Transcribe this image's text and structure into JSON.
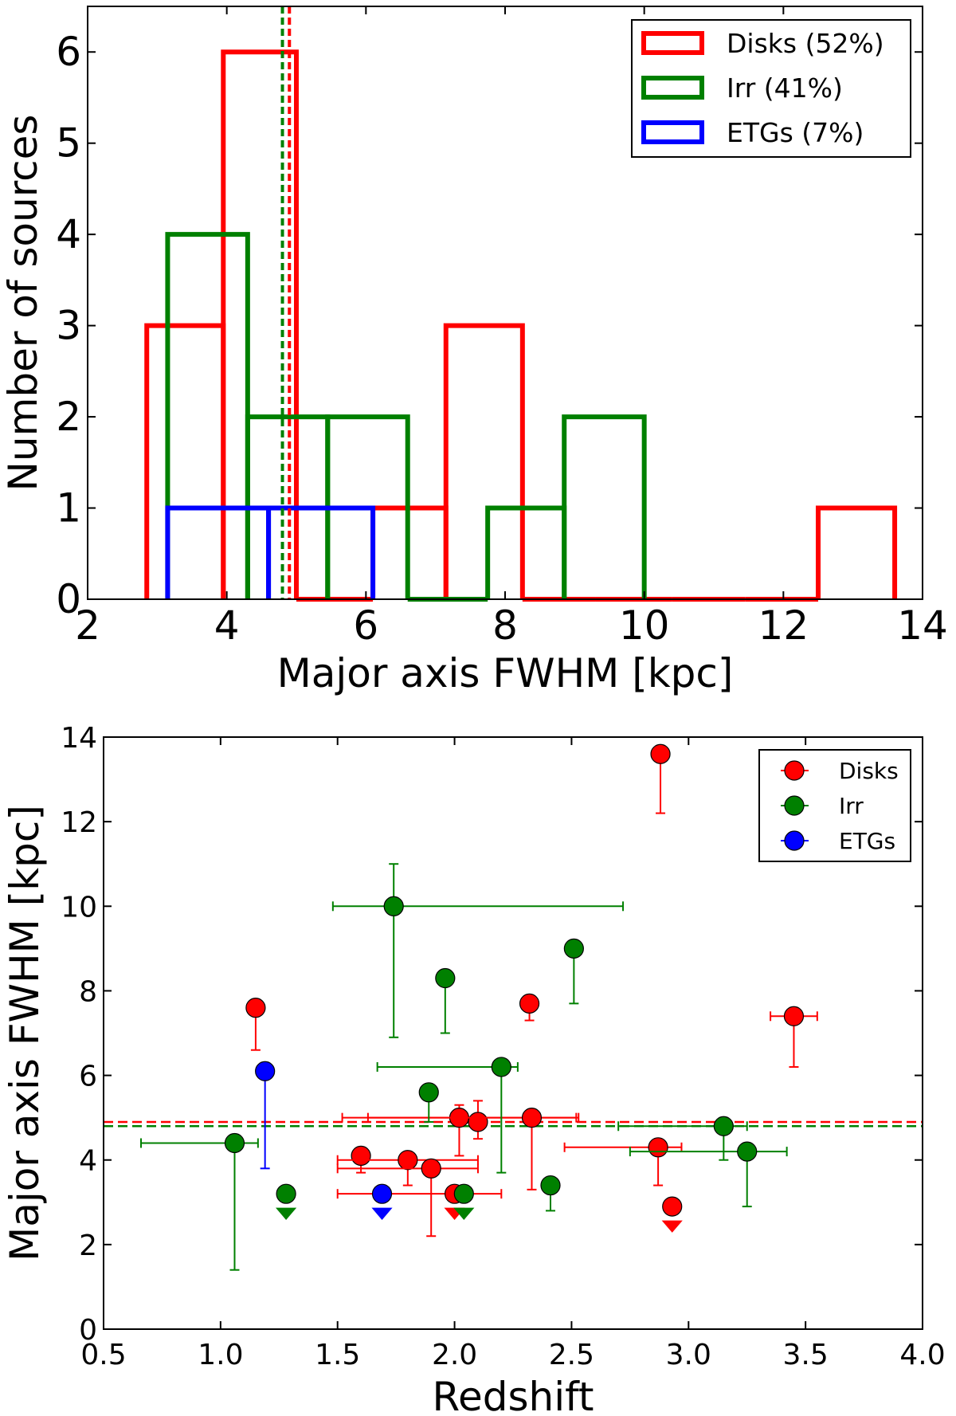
{
  "chart_data": [
    {
      "type": "histogram",
      "xlabel": "Major axis FWHM [kpc]",
      "ylabel": "Number of sources",
      "xlim": [
        2,
        14
      ],
      "ylim": [
        0,
        6.5
      ],
      "xticks": [
        "2",
        "4",
        "6",
        "8",
        "10",
        "12",
        "14"
      ],
      "yticks": [
        "0",
        "1",
        "2",
        "3",
        "4",
        "5",
        "6"
      ],
      "legend_position": "top-right",
      "series": [
        {
          "name": "Disks (52%)",
          "color": "#ff0000",
          "bins": [
            [
              2.85,
              3.95,
              3
            ],
            [
              3.95,
              5.0,
              6
            ],
            [
              5.0,
              6.1,
              0
            ],
            [
              6.1,
              7.15,
              1
            ],
            [
              7.15,
              8.25,
              3
            ],
            [
              8.25,
              9.3,
              0
            ],
            [
              9.3,
              10.4,
              0
            ],
            [
              10.4,
              11.45,
              0
            ],
            [
              11.45,
              12.5,
              0
            ],
            [
              12.5,
              13.6,
              1
            ]
          ]
        },
        {
          "name": "Irr (41%)",
          "color": "#008000",
          "bins": [
            [
              3.15,
              4.3,
              4
            ],
            [
              4.3,
              5.45,
              2
            ],
            [
              5.45,
              6.6,
              2
            ],
            [
              6.6,
              7.75,
              0
            ],
            [
              7.75,
              8.85,
              1
            ],
            [
              8.85,
              10.0,
              2
            ]
          ]
        },
        {
          "name": "ETGs (7%)",
          "color": "#0000ff",
          "bins": [
            [
              3.15,
              4.6,
              1
            ],
            [
              4.6,
              6.1,
              1
            ]
          ]
        }
      ],
      "median_lines": [
        {
          "series": "Irr",
          "x": 4.8,
          "color": "#008000"
        },
        {
          "series": "Disks",
          "x": 4.9,
          "color": "#ff0000"
        }
      ]
    },
    {
      "type": "scatter",
      "xlabel": "Redshift",
      "ylabel": "Major axis FWHM [kpc]",
      "xlim": [
        0.5,
        4.0
      ],
      "ylim": [
        0,
        14
      ],
      "xticks": [
        "0.5",
        "1.0",
        "1.5",
        "2.0",
        "2.5",
        "3.0",
        "3.5",
        "4.0"
      ],
      "yticks": [
        "0",
        "2",
        "4",
        "6",
        "8",
        "10",
        "12",
        "14"
      ],
      "legend_position": "top-right",
      "hlines": [
        {
          "series": "Disks",
          "y": 4.9,
          "color": "#ff0000"
        },
        {
          "series": "Irr",
          "y": 4.8,
          "color": "#008000"
        }
      ],
      "series": [
        {
          "name": "Disks",
          "color": "#ff0000",
          "points": [
            {
              "x": 1.15,
              "y": 7.6,
              "yerr": [
                1.0,
                0
              ]
            },
            {
              "x": 1.6,
              "y": 4.1,
              "yerr": [
                0.4,
                0
              ]
            },
            {
              "x": 1.8,
              "y": 4.0,
              "yerr": [
                0.6,
                0
              ],
              "xerr": [
                0.3,
                0.3
              ]
            },
            {
              "x": 1.9,
              "y": 3.8,
              "yerr": [
                1.6,
                0
              ],
              "xerr": [
                0.4,
                0.2
              ]
            },
            {
              "x": 2.0,
              "y": 3.2,
              "upper": true,
              "xerr": [
                0.5,
                0.2
              ]
            },
            {
              "x": 2.02,
              "y": 5.0,
              "yerr": [
                0.9,
                0.3
              ],
              "xerr": [
                0.5,
                0.5
              ]
            },
            {
              "x": 2.1,
              "y": 4.9,
              "yerr": [
                0.4,
                0.5
              ]
            },
            {
              "x": 2.32,
              "y": 7.7,
              "yerr": [
                0.4,
                0
              ]
            },
            {
              "x": 2.33,
              "y": 5.0,
              "yerr": [
                1.7,
                0
              ],
              "xerr": [
                0.7,
                0.2
              ]
            },
            {
              "x": 2.88,
              "y": 13.6,
              "yerr": [
                1.4,
                0
              ]
            },
            {
              "x": 2.87,
              "y": 4.3,
              "yerr": [
                0.9,
                0
              ],
              "xerr": [
                0.4,
                0.1
              ]
            },
            {
              "x": 2.93,
              "y": 2.9,
              "upper": true
            },
            {
              "x": 3.45,
              "y": 7.4,
              "yerr": [
                1.2,
                0
              ],
              "xerr": [
                0.1,
                0.1
              ]
            }
          ]
        },
        {
          "name": "Irr",
          "color": "#008000",
          "points": [
            {
              "x": 1.06,
              "y": 4.4,
              "yerr": [
                3.0,
                0
              ],
              "xerr": [
                0.4,
                0.1
              ]
            },
            {
              "x": 1.28,
              "y": 3.2,
              "upper": true
            },
            {
              "x": 1.74,
              "y": 10.0,
              "yerr": [
                3.1,
                1.0
              ],
              "xerr": [
                0.26,
                0.98
              ]
            },
            {
              "x": 1.89,
              "y": 5.6,
              "yerr": [
                0.7,
                0
              ]
            },
            {
              "x": 1.96,
              "y": 8.3,
              "yerr": [
                1.3,
                0
              ]
            },
            {
              "x": 2.04,
              "y": 3.2,
              "upper": true
            },
            {
              "x": 2.2,
              "y": 6.2,
              "yerr": [
                2.5,
                0
              ],
              "xerr": [
                0.53,
                0.07
              ]
            },
            {
              "x": 2.41,
              "y": 3.4,
              "yerr": [
                0.6,
                0
              ]
            },
            {
              "x": 2.51,
              "y": 9.0,
              "yerr": [
                1.3,
                0
              ]
            },
            {
              "x": 3.15,
              "y": 4.8,
              "yerr": [
                0.8,
                0
              ],
              "xerr": [
                0.45,
                0.1
              ]
            },
            {
              "x": 3.25,
              "y": 4.2,
              "yerr": [
                1.3,
                0
              ],
              "xerr": [
                0.5,
                0.17
              ]
            }
          ]
        },
        {
          "name": "ETGs",
          "color": "#0000ff",
          "points": [
            {
              "x": 1.19,
              "y": 6.1,
              "yerr": [
                2.3,
                0
              ]
            },
            {
              "x": 1.69,
              "y": 3.2,
              "upper": true
            }
          ]
        }
      ]
    }
  ]
}
